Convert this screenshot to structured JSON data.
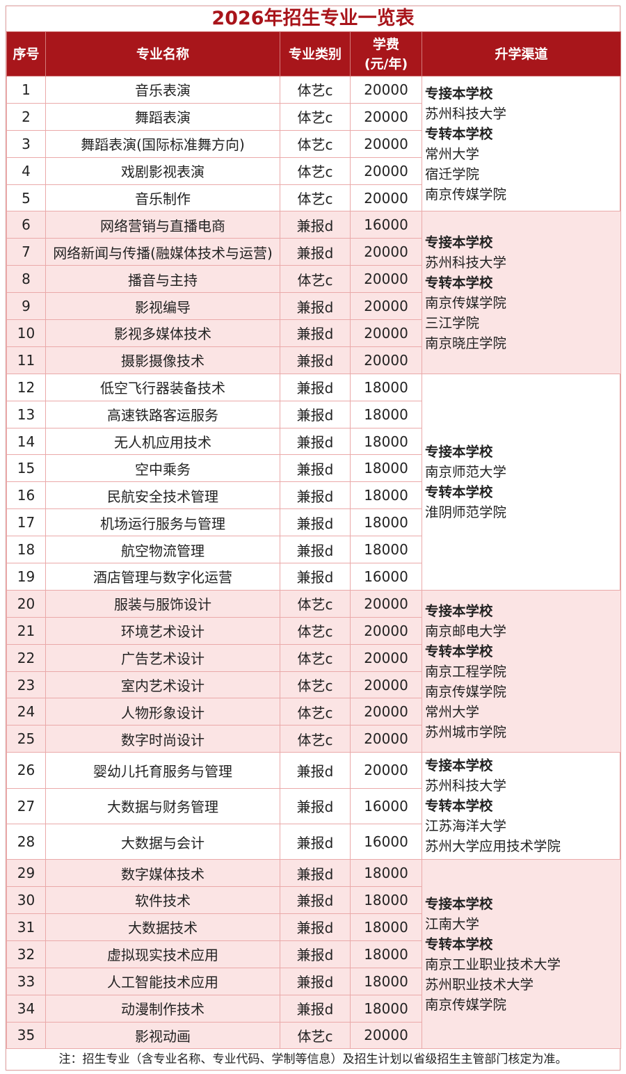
{
  "title": "2026年招生专业一览表",
  "headers": {
    "no": "序号",
    "name": "专业名称",
    "type": "专业类别",
    "fee_line1": "学费",
    "fee_line2": "(元/年)",
    "channel": "升学渠道"
  },
  "colors": {
    "header_bg": "#a8161b",
    "title": "#a8141a",
    "band": "#fbe4e4"
  },
  "groups": [
    {
      "shaded": false,
      "rows": [
        [
          "1",
          "音乐表演",
          "体艺c",
          "20000"
        ],
        [
          "2",
          "舞蹈表演",
          "体艺c",
          "20000"
        ],
        [
          "3",
          "舞蹈表演(国际标准舞方向)",
          "体艺c",
          "20000"
        ],
        [
          "4",
          "戏剧影视表演",
          "体艺c",
          "20000"
        ],
        [
          "5",
          "音乐制作",
          "体艺c",
          "20000"
        ]
      ],
      "channels": [
        {
          "text": "专接本学校",
          "bold": true
        },
        {
          "text": "苏州科技大学"
        },
        {
          "text": "专转本学校",
          "bold": true
        },
        {
          "text": "常州大学"
        },
        {
          "text": "宿迁学院"
        },
        {
          "text": "南京传媒学院"
        }
      ]
    },
    {
      "shaded": true,
      "rows": [
        [
          "6",
          "网络营销与直播电商",
          "兼报d",
          "16000"
        ],
        [
          "7",
          "网络新闻与传播(融媒体技术与运营)",
          "兼报d",
          "20000"
        ],
        [
          "8",
          "播音与主持",
          "体艺c",
          "20000"
        ],
        [
          "9",
          "影视编导",
          "兼报d",
          "20000"
        ],
        [
          "10",
          "影视多媒体技术",
          "兼报d",
          "20000"
        ],
        [
          "11",
          "摄影摄像技术",
          "兼报d",
          "20000"
        ]
      ],
      "channels": [
        {
          "text": "专接本学校",
          "bold": true
        },
        {
          "text": "苏州科技大学"
        },
        {
          "text": "专转本学校",
          "bold": true
        },
        {
          "text": "南京传媒学院"
        },
        {
          "text": "三江学院"
        },
        {
          "text": "南京晓庄学院"
        }
      ]
    },
    {
      "shaded": false,
      "rows": [
        [
          "12",
          "低空飞行器装备技术",
          "兼报d",
          "18000"
        ],
        [
          "13",
          "高速铁路客运服务",
          "兼报d",
          "18000"
        ],
        [
          "14",
          "无人机应用技术",
          "兼报d",
          "18000"
        ],
        [
          "15",
          "空中乘务",
          "兼报d",
          "18000"
        ],
        [
          "16",
          "民航安全技术管理",
          "兼报d",
          "18000"
        ],
        [
          "17",
          "机场运行服务与管理",
          "兼报d",
          "18000"
        ],
        [
          "18",
          "航空物流管理",
          "兼报d",
          "18000"
        ],
        [
          "19",
          "酒店管理与数字化运营",
          "兼报d",
          "16000"
        ]
      ],
      "channels": [
        {
          "text": "专接本学校",
          "bold": true
        },
        {
          "text": "南京师范大学"
        },
        {
          "text": "专转本学校",
          "bold": true
        },
        {
          "text": "淮阴师范学院"
        }
      ]
    },
    {
      "shaded": true,
      "rows": [
        [
          "20",
          "服装与服饰设计",
          "体艺c",
          "20000"
        ],
        [
          "21",
          "环境艺术设计",
          "体艺c",
          "20000"
        ],
        [
          "22",
          "广告艺术设计",
          "体艺c",
          "20000"
        ],
        [
          "23",
          "室内艺术设计",
          "体艺c",
          "20000"
        ],
        [
          "24",
          "人物形象设计",
          "体艺c",
          "20000"
        ],
        [
          "25",
          "数字时尚设计",
          "体艺c",
          "20000"
        ]
      ],
      "channels": [
        {
          "text": "专接本学校",
          "bold": true
        },
        {
          "text": "南京邮电大学"
        },
        {
          "text": "专转本学校",
          "bold": true
        },
        {
          "text": "南京工程学院"
        },
        {
          "text": "南京传媒学院"
        },
        {
          "text": "常州大学"
        },
        {
          "text": "苏州城市学院"
        }
      ]
    },
    {
      "shaded": false,
      "tall": true,
      "rows": [
        [
          "26",
          "婴幼儿托育服务与管理",
          "兼报d",
          "20000"
        ],
        [
          "27",
          "大数据与财务管理",
          "兼报d",
          "16000"
        ],
        [
          "28",
          "大数据与会计",
          "兼报d",
          "16000"
        ]
      ],
      "channels": [
        {
          "text": "专接本学校",
          "bold": true
        },
        {
          "text": "苏州科技大学"
        },
        {
          "text": "专转本学校",
          "bold": true
        },
        {
          "text": "江苏海洋大学"
        },
        {
          "text": "苏州大学应用技术学院"
        }
      ]
    },
    {
      "shaded": true,
      "rows": [
        [
          "29",
          "数字媒体技术",
          "兼报d",
          "18000"
        ],
        [
          "30",
          "软件技术",
          "兼报d",
          "18000"
        ],
        [
          "31",
          "大数据技术",
          "兼报d",
          "18000"
        ],
        [
          "32",
          "虚拟现实技术应用",
          "兼报d",
          "18000"
        ],
        [
          "33",
          "人工智能技术应用",
          "兼报d",
          "18000"
        ],
        [
          "34",
          "动漫制作技术",
          "兼报d",
          "18000"
        ],
        [
          "35",
          "影视动画",
          "体艺c",
          "20000"
        ]
      ],
      "channels": [
        {
          "text": "专接本学校",
          "bold": true
        },
        {
          "text": "江南大学"
        },
        {
          "text": "专转本学校",
          "bold": true
        },
        {
          "text": "南京工业职业技术大学"
        },
        {
          "text": "苏州职业技术大学"
        },
        {
          "text": "南京传媒学院"
        }
      ]
    }
  ],
  "note": "注：招生专业（含专业名称、专业代码、学制等信息）及招生计划以省级招生主管部门核定为准。"
}
